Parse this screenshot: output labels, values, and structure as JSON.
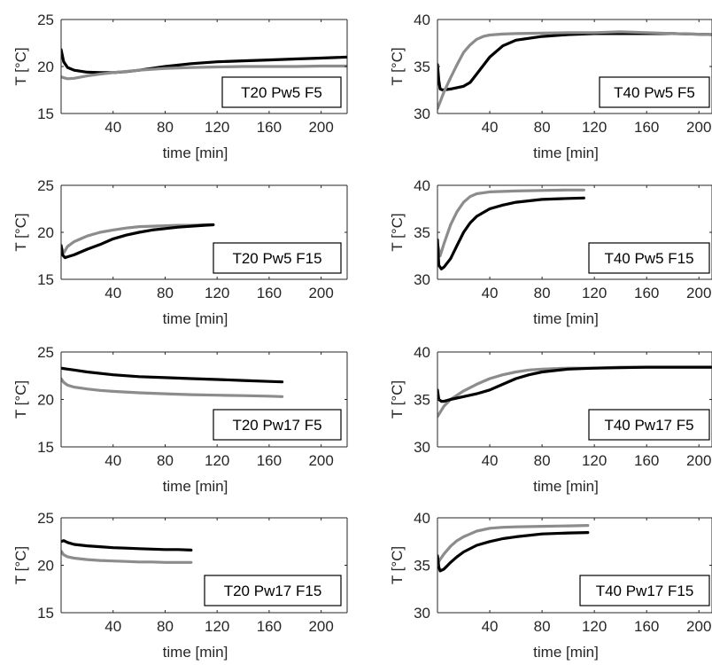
{
  "chart_data": [
    {
      "type": "line",
      "annotation": "T20 Pw5 F5",
      "xlabel": "time [min]",
      "ylabel": "T [°C]",
      "xlim": [
        0,
        220
      ],
      "ylim": [
        15,
        25
      ],
      "xticks": [
        40,
        80,
        120,
        160,
        200
      ],
      "yticks": [
        15,
        20,
        25
      ],
      "series": [
        {
          "color": "#000000",
          "x": [
            0,
            2,
            5,
            10,
            20,
            30,
            40,
            50,
            60,
            80,
            100,
            120,
            140,
            160,
            180,
            200,
            220
          ],
          "y": [
            21.8,
            20.5,
            19.9,
            19.6,
            19.4,
            19.35,
            19.35,
            19.45,
            19.6,
            20.0,
            20.3,
            20.5,
            20.6,
            20.7,
            20.8,
            20.9,
            21.0
          ]
        },
        {
          "color": "#8c8c8c",
          "x": [
            0,
            2,
            5,
            10,
            20,
            30,
            40,
            60,
            80,
            100,
            120,
            140,
            160,
            180,
            200,
            220
          ],
          "y": [
            18.9,
            18.8,
            18.7,
            18.75,
            19.0,
            19.2,
            19.35,
            19.6,
            19.8,
            19.9,
            19.95,
            20.0,
            20.0,
            20.0,
            20.05,
            20.05
          ]
        }
      ]
    },
    {
      "type": "line",
      "annotation": "T40 Pw5 F5",
      "xlabel": "time [min]",
      "ylabel": "T [°C]",
      "xlim": [
        0,
        210
      ],
      "ylim": [
        30,
        40
      ],
      "xticks": [
        40,
        80,
        120,
        160,
        200
      ],
      "yticks": [
        30,
        35,
        40
      ],
      "series": [
        {
          "color": "#000000",
          "x": [
            0,
            1,
            2,
            4,
            10,
            20,
            25,
            30,
            40,
            50,
            60,
            80,
            100,
            120,
            140,
            160,
            180,
            210
          ],
          "y": [
            35.2,
            33.5,
            32.6,
            32.5,
            32.6,
            32.9,
            33.3,
            34.2,
            36.0,
            37.2,
            37.8,
            38.2,
            38.4,
            38.5,
            38.5,
            38.5,
            38.5,
            38.4
          ]
        },
        {
          "color": "#8c8c8c",
          "x": [
            0,
            5,
            10,
            15,
            20,
            25,
            30,
            35,
            40,
            50,
            60,
            80,
            100,
            120,
            140,
            160,
            180,
            210
          ],
          "y": [
            30.5,
            32.3,
            33.8,
            35.2,
            36.5,
            37.3,
            37.9,
            38.2,
            38.35,
            38.45,
            38.5,
            38.55,
            38.6,
            38.6,
            38.7,
            38.6,
            38.5,
            38.4
          ]
        }
      ]
    },
    {
      "type": "line",
      "annotation": "T20 Pw5 F15",
      "xlabel": "time [min]",
      "ylabel": "T [°C]",
      "xlim": [
        0,
        220
      ],
      "ylim": [
        15,
        25
      ],
      "xticks": [
        40,
        80,
        120,
        160,
        200
      ],
      "yticks": [
        15,
        20,
        25
      ],
      "series": [
        {
          "color": "#8c8c8c",
          "x": [
            0,
            2,
            5,
            10,
            15,
            20,
            30,
            40,
            50,
            60,
            70,
            80,
            90,
            100,
            110,
            117
          ],
          "y": [
            18.5,
            17.8,
            18.5,
            19.0,
            19.3,
            19.6,
            20.0,
            20.25,
            20.45,
            20.6,
            20.65,
            20.7,
            20.75,
            20.75,
            20.8,
            20.8
          ]
        },
        {
          "color": "#000000",
          "x": [
            0,
            1,
            3,
            5,
            10,
            20,
            30,
            40,
            50,
            60,
            70,
            80,
            90,
            100,
            110,
            117
          ],
          "y": [
            18.6,
            17.6,
            17.3,
            17.4,
            17.6,
            18.2,
            18.7,
            19.3,
            19.7,
            20.0,
            20.25,
            20.4,
            20.55,
            20.65,
            20.75,
            20.8
          ]
        }
      ]
    },
    {
      "type": "line",
      "annotation": "T40 Pw5 F15",
      "xlabel": "time [min]",
      "ylabel": "T [°C]",
      "xlim": [
        0,
        210
      ],
      "ylim": [
        30,
        40
      ],
      "xticks": [
        40,
        80,
        120,
        160,
        200
      ],
      "yticks": [
        30,
        35,
        40
      ],
      "series": [
        {
          "color": "#8c8c8c",
          "x": [
            0,
            2,
            5,
            10,
            15,
            20,
            25,
            30,
            40,
            50,
            60,
            80,
            100,
            112
          ],
          "y": [
            33.8,
            32.5,
            33.8,
            35.8,
            37.2,
            38.2,
            38.8,
            39.1,
            39.3,
            39.35,
            39.4,
            39.45,
            39.5,
            39.5
          ]
        },
        {
          "color": "#000000",
          "x": [
            0,
            1,
            3,
            5,
            10,
            15,
            20,
            25,
            30,
            40,
            50,
            60,
            80,
            100,
            112
          ],
          "y": [
            34.2,
            31.5,
            31.1,
            31.3,
            32.2,
            33.6,
            35.0,
            36.0,
            36.7,
            37.5,
            37.9,
            38.2,
            38.5,
            38.6,
            38.65
          ]
        }
      ]
    },
    {
      "type": "line",
      "annotation": "T20 Pw17 F5",
      "xlabel": "time [min]",
      "ylabel": "T [°C]",
      "xlim": [
        0,
        220
      ],
      "ylim": [
        15,
        25
      ],
      "xticks": [
        40,
        80,
        120,
        160,
        200
      ],
      "yticks": [
        15,
        20,
        25
      ],
      "series": [
        {
          "color": "#000000",
          "x": [
            0,
            5,
            10,
            20,
            40,
            60,
            80,
            100,
            120,
            140,
            160,
            170
          ],
          "y": [
            23.3,
            23.2,
            23.1,
            22.9,
            22.6,
            22.4,
            22.3,
            22.2,
            22.1,
            22.0,
            21.9,
            21.85
          ]
        },
        {
          "color": "#8c8c8c",
          "x": [
            0,
            2,
            5,
            10,
            20,
            30,
            40,
            60,
            80,
            100,
            120,
            140,
            160,
            170
          ],
          "y": [
            22.2,
            21.8,
            21.5,
            21.3,
            21.1,
            20.95,
            20.85,
            20.7,
            20.6,
            20.5,
            20.45,
            20.4,
            20.35,
            20.3
          ]
        }
      ]
    },
    {
      "type": "line",
      "annotation": "T40 Pw17 F5",
      "xlabel": "time [min]",
      "ylabel": "T [°C]",
      "xlim": [
        0,
        210
      ],
      "ylim": [
        30,
        40
      ],
      "xticks": [
        40,
        80,
        120,
        160,
        200
      ],
      "yticks": [
        30,
        35,
        40
      ],
      "series": [
        {
          "color": "#8c8c8c",
          "x": [
            0,
            5,
            10,
            20,
            30,
            40,
            50,
            60,
            70,
            80,
            100,
            120,
            140,
            160,
            180,
            210
          ],
          "y": [
            33.2,
            34.3,
            35.0,
            35.9,
            36.6,
            37.2,
            37.6,
            37.9,
            38.1,
            38.2,
            38.3,
            38.3,
            38.4,
            38.4,
            38.4,
            38.4
          ]
        },
        {
          "color": "#000000",
          "x": [
            0,
            1,
            3,
            5,
            10,
            20,
            30,
            40,
            50,
            60,
            70,
            80,
            100,
            120,
            140,
            160,
            180,
            210
          ],
          "y": [
            36.0,
            35.0,
            34.8,
            34.8,
            35.0,
            35.3,
            35.6,
            36.0,
            36.6,
            37.2,
            37.6,
            37.9,
            38.2,
            38.3,
            38.35,
            38.4,
            38.4,
            38.4
          ]
        }
      ]
    },
    {
      "type": "line",
      "annotation": "T20 Pw17 F15",
      "xlabel": "time [min]",
      "ylabel": "T [°C]",
      "xlim": [
        0,
        220
      ],
      "ylim": [
        15,
        25
      ],
      "xticks": [
        40,
        80,
        120,
        160,
        200
      ],
      "yticks": [
        15,
        20,
        25
      ],
      "series": [
        {
          "color": "#000000",
          "x": [
            0,
            2,
            5,
            10,
            20,
            30,
            40,
            50,
            60,
            70,
            80,
            90,
            100
          ],
          "y": [
            22.5,
            22.6,
            22.4,
            22.2,
            22.05,
            21.95,
            21.85,
            21.8,
            21.75,
            21.7,
            21.65,
            21.65,
            21.6
          ]
        },
        {
          "color": "#8c8c8c",
          "x": [
            0,
            2,
            5,
            10,
            20,
            30,
            40,
            50,
            60,
            70,
            80,
            90,
            100
          ],
          "y": [
            21.5,
            21.1,
            20.9,
            20.75,
            20.6,
            20.5,
            20.45,
            20.4,
            20.35,
            20.35,
            20.3,
            20.3,
            20.3
          ]
        }
      ]
    },
    {
      "type": "line",
      "annotation": "T40 Pw17 F15",
      "xlabel": "time [min]",
      "ylabel": "T [°C]",
      "xlim": [
        0,
        210
      ],
      "ylim": [
        30,
        40
      ],
      "xticks": [
        40,
        80,
        120,
        160,
        200
      ],
      "yticks": [
        30,
        35,
        40
      ],
      "series": [
        {
          "color": "#8c8c8c",
          "x": [
            0,
            3,
            5,
            10,
            15,
            20,
            25,
            30,
            40,
            50,
            60,
            80,
            100,
            115
          ],
          "y": [
            35.2,
            35.8,
            36.2,
            37.0,
            37.6,
            38.0,
            38.3,
            38.6,
            38.9,
            39.0,
            39.05,
            39.1,
            39.15,
            39.2
          ]
        },
        {
          "color": "#000000",
          "x": [
            0,
            1,
            2,
            5,
            10,
            15,
            20,
            30,
            40,
            50,
            60,
            80,
            100,
            115
          ],
          "y": [
            36.0,
            34.8,
            34.4,
            34.6,
            35.3,
            35.9,
            36.4,
            37.1,
            37.5,
            37.8,
            38.0,
            38.3,
            38.4,
            38.45
          ]
        }
      ]
    }
  ]
}
